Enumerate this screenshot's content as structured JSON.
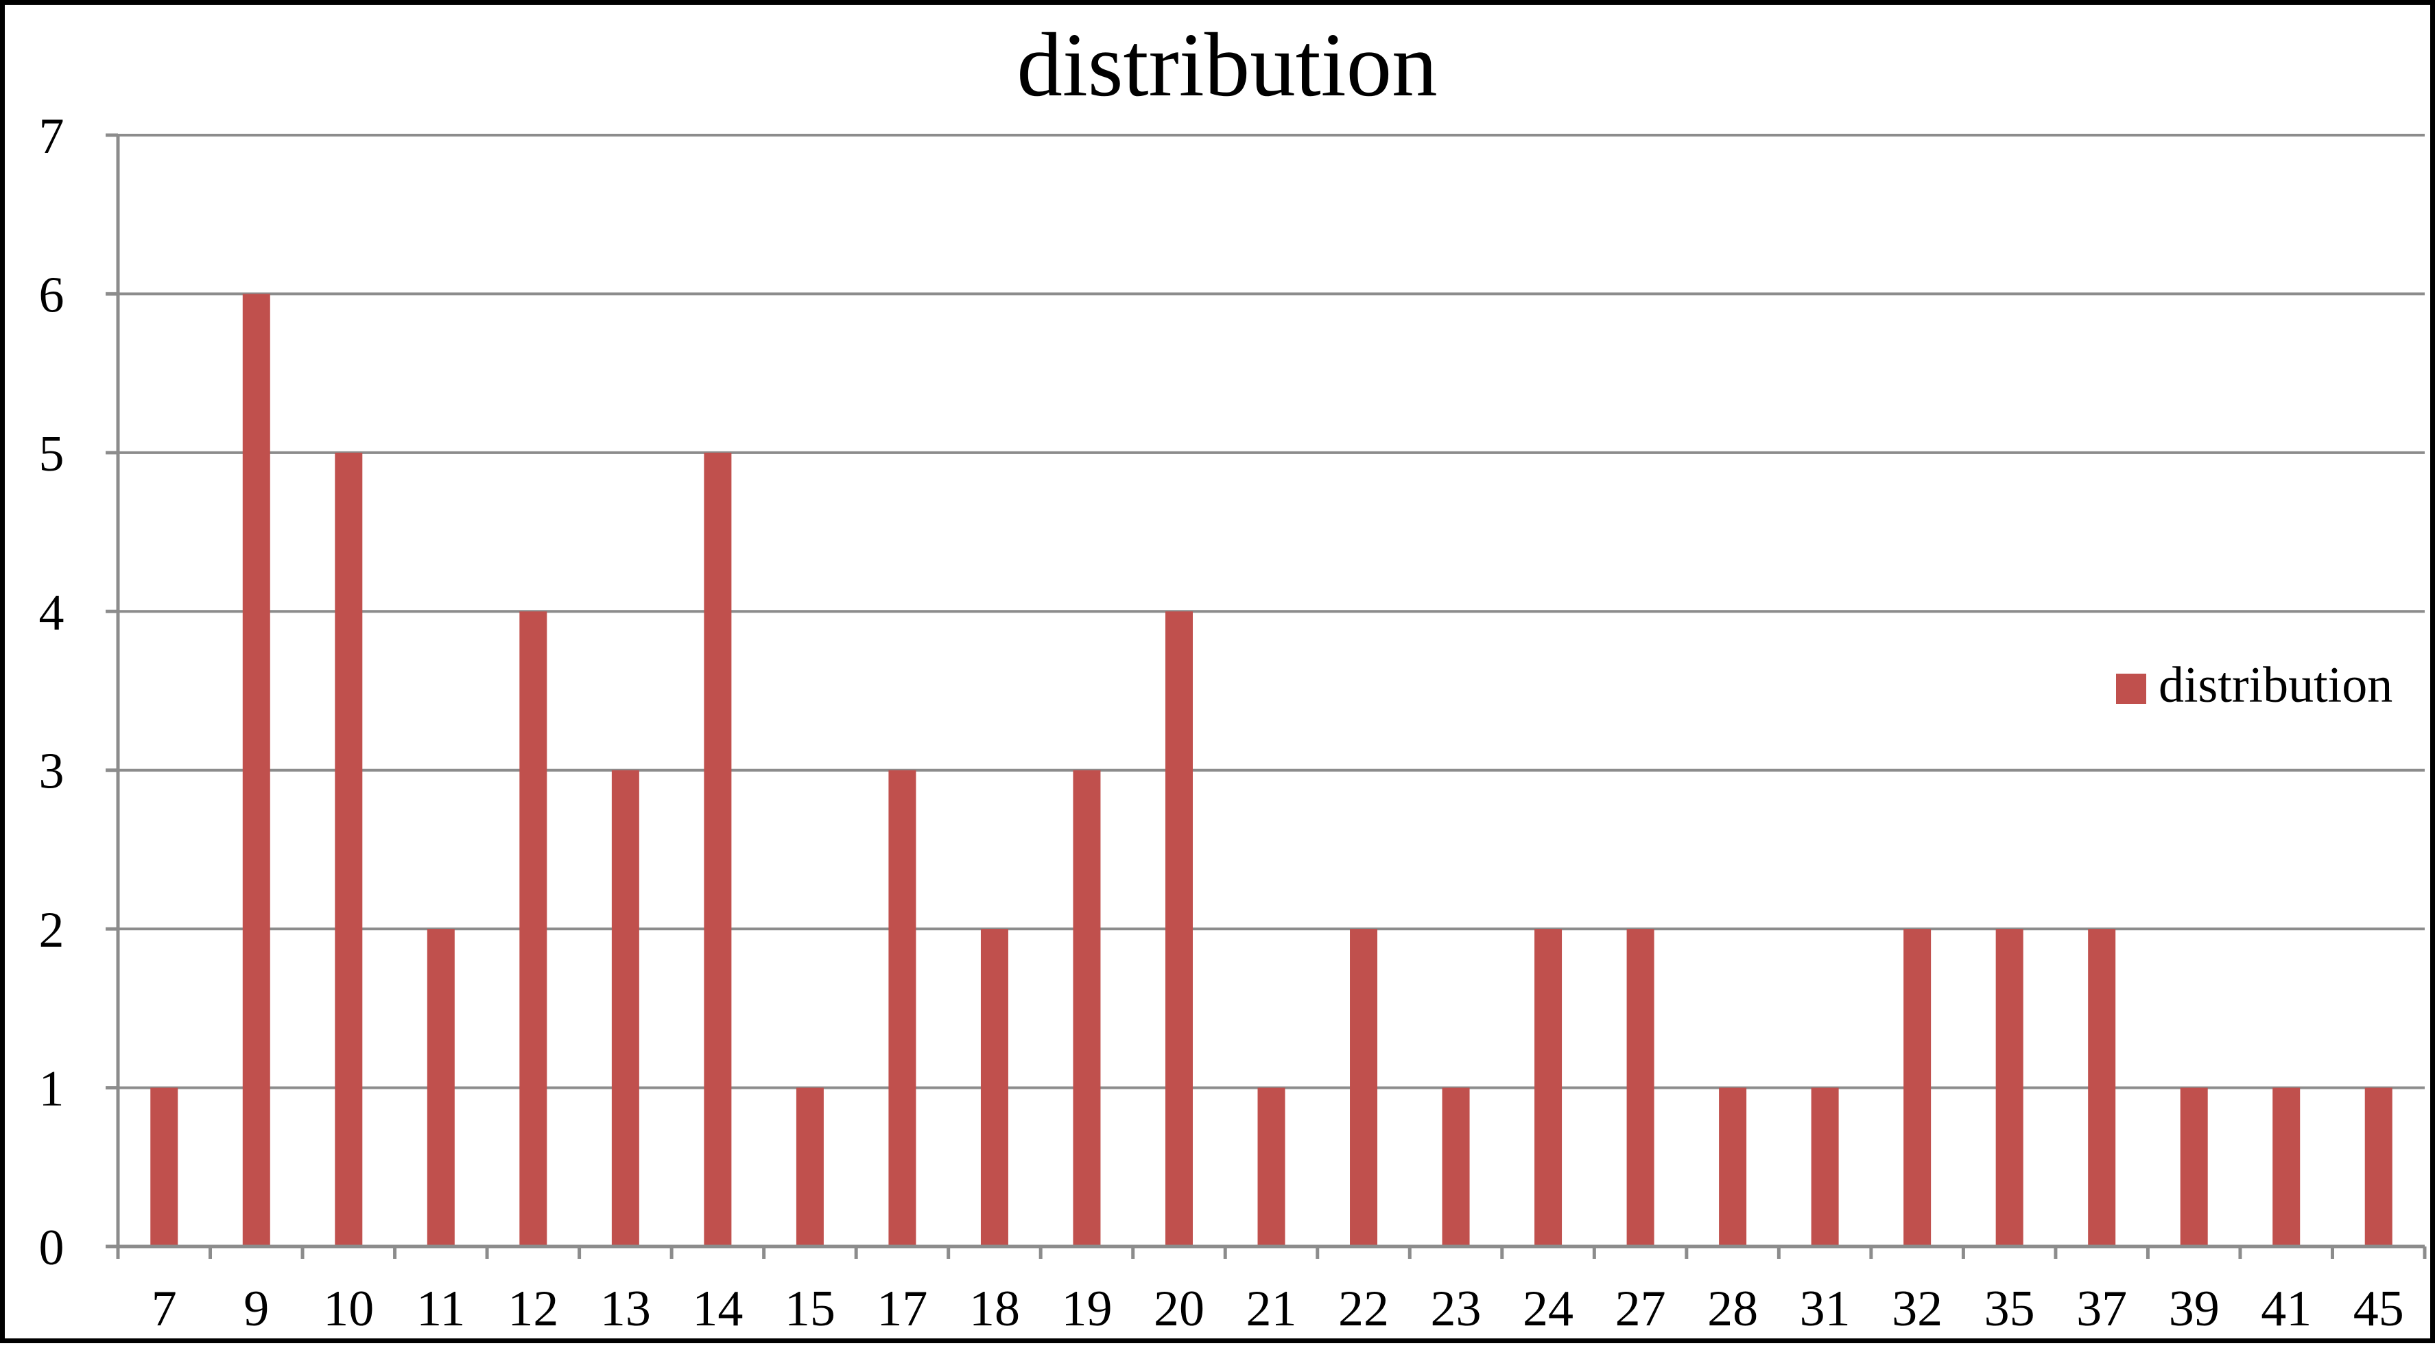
{
  "chart_data": {
    "type": "bar",
    "title": "distribution",
    "xlabel": "",
    "ylabel": "",
    "categories": [
      "7",
      "9",
      "10",
      "11",
      "12",
      "13",
      "14",
      "15",
      "17",
      "18",
      "19",
      "20",
      "21",
      "22",
      "23",
      "24",
      "27",
      "28",
      "31",
      "32",
      "35",
      "37",
      "39",
      "41",
      "45"
    ],
    "series": [
      {
        "name": "distribution",
        "values": [
          1,
          6,
          5,
          2,
          4,
          3,
          5,
          1,
          3,
          2,
          3,
          4,
          1,
          2,
          1,
          2,
          2,
          1,
          1,
          2,
          2,
          2,
          1,
          1,
          1
        ],
        "color": "#C0504D"
      }
    ],
    "ylim": [
      0,
      7
    ],
    "yticks": [
      "0",
      "1",
      "2",
      "3",
      "4",
      "5",
      "6",
      "7"
    ],
    "grid": "horizontal",
    "legend": {
      "placement": "right",
      "entries": [
        "distribution"
      ]
    },
    "colors": {
      "bar": "#C0504D",
      "grid": "#8C8C8C",
      "axis": "#8C8C8C",
      "frame": "#000000"
    }
  }
}
